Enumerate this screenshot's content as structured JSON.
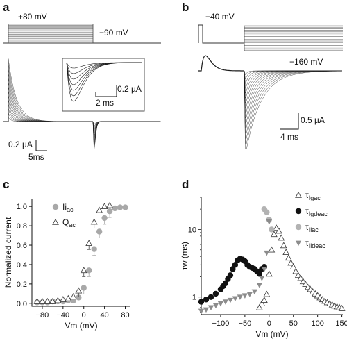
{
  "panel_a": {
    "label": "a",
    "v_step": "+80 mV",
    "v_hold": "−90 mV",
    "scale_current": "0.2 µA",
    "scale_time": "5ms",
    "inset_current": "0.2 µA",
    "inset_time": "2 ms"
  },
  "panel_b": {
    "label": "b",
    "v_step": "+40 mV",
    "v_hold": "−160 mV",
    "scale_current": "0.5 µA",
    "scale_time": "4 ms"
  },
  "chart_data": [
    {
      "panel": "c",
      "type": "scatter",
      "xlabel": "Vm (mV)",
      "ylabel": "Normalized current",
      "xlim": [
        -100,
        90
      ],
      "ylim": [
        -0.03,
        1.08
      ],
      "xticks": [
        "−80",
        "−40",
        "0",
        "40",
        "80"
      ],
      "xtick_values": [
        -80,
        -40,
        0,
        40,
        80
      ],
      "yticks": [
        "0.0",
        "0.2",
        "0.4",
        "0.6",
        "0.8",
        "1.0"
      ],
      "ytick_values": [
        0,
        0.2,
        0.4,
        0.6,
        0.8,
        1.0
      ],
      "legend_position": "top-left",
      "series": [
        {
          "name": "Ii",
          "name_sub": "ac",
          "marker": "circle",
          "color": "#a8a8a8",
          "x": [
            -90,
            -80,
            -70,
            -60,
            -50,
            -40,
            -30,
            -20,
            -10,
            0,
            10,
            20,
            30,
            40,
            50,
            60,
            70,
            80
          ],
          "y": [
            0.01,
            0.01,
            0.01,
            0.02,
            0.02,
            0.02,
            0.03,
            0.03,
            0.06,
            0.16,
            0.34,
            0.56,
            0.74,
            0.88,
            0.95,
            0.98,
            0.99,
            0.99
          ]
        },
        {
          "name": "Q",
          "name_sub": "ac",
          "marker": "triangle-open",
          "color": "#444444",
          "x": [
            -90,
            -80,
            -70,
            -60,
            -50,
            -40,
            -30,
            -20,
            -10,
            0,
            10,
            20,
            30,
            40,
            50
          ],
          "y": [
            0.02,
            0.02,
            0.02,
            0.02,
            0.03,
            0.04,
            0.05,
            0.07,
            0.13,
            0.34,
            0.62,
            0.84,
            0.96,
            1.0,
            1.01
          ]
        }
      ]
    },
    {
      "panel": "d",
      "type": "scatter",
      "xlabel": "Vm (mV)",
      "ylabel": "τw (ms)",
      "xlim": [
        -140,
        152
      ],
      "ylim": [
        0.55,
        30
      ],
      "y_scale": "log",
      "xticks": [
        "−100",
        "−50",
        "0",
        "50",
        "100",
        "150"
      ],
      "xtick_values": [
        -100,
        -50,
        0,
        50,
        100,
        150
      ],
      "yticks": [
        "1",
        "10"
      ],
      "ytick_values": [
        1,
        10
      ],
      "legend_position": "right",
      "series": [
        {
          "name": "τ",
          "name_sub": "Igac",
          "marker": "triangle-open",
          "color": "#444444",
          "x": [
            -20,
            -15,
            -10,
            -5,
            0,
            5,
            10,
            15,
            20,
            25,
            30,
            35,
            40,
            45,
            50,
            55,
            60,
            65,
            70,
            75,
            80,
            85,
            90,
            95,
            100,
            105,
            110,
            115,
            120,
            125,
            130,
            135,
            140,
            145,
            150
          ],
          "y": [
            0.7,
            0.8,
            0.9,
            1.1,
            2.2,
            5.0,
            8.5,
            10.5,
            9.5,
            7.5,
            5.8,
            4.6,
            3.8,
            3.2,
            2.8,
            2.4,
            2.1,
            1.9,
            1.7,
            1.55,
            1.4,
            1.3,
            1.2,
            1.12,
            1.05,
            0.98,
            0.92,
            0.87,
            0.83,
            0.8,
            0.77,
            0.74,
            0.72,
            0.7,
            0.68
          ]
        },
        {
          "name": "τ",
          "name_sub": "Igdeac",
          "marker": "circle",
          "color": "#111111",
          "x": [
            -140,
            -130,
            -120,
            -110,
            -100,
            -95,
            -90,
            -85,
            -80,
            -75,
            -70,
            -65,
            -60,
            -55,
            -50,
            -45,
            -40,
            -35,
            -30,
            -25,
            -20,
            -15,
            -10
          ],
          "y": [
            0.85,
            0.92,
            1.0,
            1.12,
            1.3,
            1.45,
            1.6,
            1.85,
            2.1,
            2.6,
            3.0,
            3.5,
            3.7,
            3.6,
            3.4,
            3.0,
            2.8,
            2.7,
            2.6,
            2.4,
            2.2,
            2.6,
            2.8
          ]
        },
        {
          "name": "τ",
          "name_sub": "Iiac",
          "marker": "circle",
          "color": "#b3b3b3",
          "x": [
            -10,
            -5,
            0,
            5
          ],
          "y": [
            20,
            18,
            14,
            10
          ]
        },
        {
          "name": "τ",
          "name_sub": "Iideac",
          "marker": "triangle-down",
          "color": "#8c8c8c",
          "x": [
            -140,
            -130,
            -120,
            -110,
            -100,
            -90,
            -80,
            -70,
            -60,
            -50,
            -40,
            -30,
            -20,
            -15,
            -10,
            -5,
            0
          ],
          "y": [
            0.62,
            0.65,
            0.7,
            0.75,
            0.8,
            0.85,
            0.9,
            0.95,
            1.0,
            1.05,
            1.1,
            1.2,
            1.5,
            1.9,
            2.6,
            4.5,
            13
          ]
        }
      ]
    }
  ],
  "panel_c_label": "c",
  "panel_d_label": "d",
  "colors": {
    "trace": "#1a1a1a",
    "frame": "#555555"
  }
}
